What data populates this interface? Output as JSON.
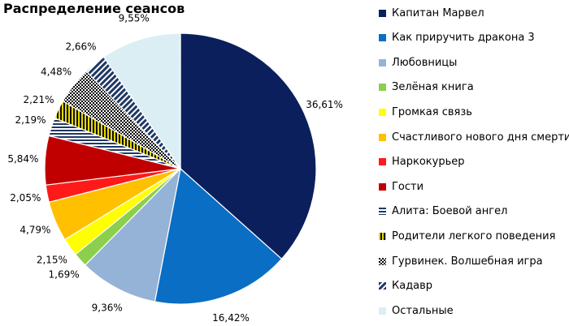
{
  "chart_data": {
    "type": "pie",
    "title": "Распределение сеансов",
    "start_angle_deg": 0,
    "direction": "clockwise",
    "slices": [
      {
        "label": "Капитан Марвел",
        "value": 36.61,
        "value_label": "36,61%",
        "color": "#0b1f5c",
        "pattern": "solid"
      },
      {
        "label": "Как приручить дракона 3",
        "value": 16.42,
        "value_label": "16,42%",
        "color": "#0a6ec4",
        "pattern": "solid"
      },
      {
        "label": "Любовницы",
        "value": 9.36,
        "value_label": "9,36%",
        "color": "#95b3d7",
        "pattern": "solid"
      },
      {
        "label": "Зелёная книга",
        "value": 1.69,
        "value_label": "1,69%",
        "color": "#8ccf4d",
        "pattern": "solid"
      },
      {
        "label": "Громкая связь",
        "value": 2.15,
        "value_label": "2,15%",
        "color": "#ffff00",
        "pattern": "solid"
      },
      {
        "label": "Счастливого нового дня смерти",
        "value": 4.79,
        "value_label": "4,79%",
        "color": "#ffc000",
        "pattern": "solid"
      },
      {
        "label": "Наркокурьер",
        "value": 2.05,
        "value_label": "2,05%",
        "color": "#ff1a1a",
        "pattern": "solid"
      },
      {
        "label": "Гости",
        "value": 5.84,
        "value_label": "5,84%",
        "color": "#c00000",
        "pattern": "solid"
      },
      {
        "label": "Алита: Боевой ангел",
        "value": 2.19,
        "value_label": "2,19%",
        "color": "#1f3864",
        "pattern": "hstripes"
      },
      {
        "label": "Родители легкого поведения",
        "value": 2.21,
        "value_label": "2,21%",
        "color": "#d4c400",
        "pattern": "vstripes"
      },
      {
        "label": "Гурвинек. Волшебная игра",
        "value": 4.48,
        "value_label": "4,48%",
        "color": "#000000",
        "pattern": "dots"
      },
      {
        "label": "Кадавр",
        "value": 2.66,
        "value_label": "2,66%",
        "color": "#1f3864",
        "pattern": "diag"
      },
      {
        "label": "Остальные",
        "value": 9.55,
        "value_label": "9,55%",
        "color": "#dbeef4",
        "pattern": "solid"
      }
    ]
  }
}
